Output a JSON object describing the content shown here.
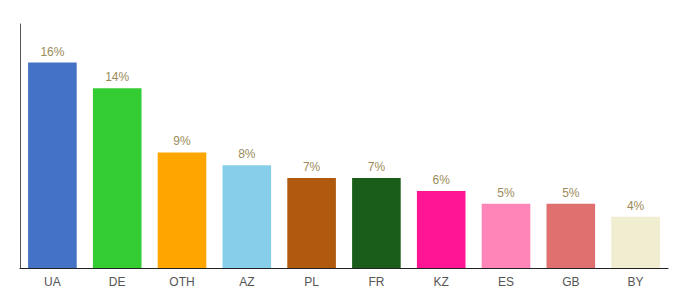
{
  "chart_data": {
    "type": "bar",
    "categories": [
      "UA",
      "DE",
      "OTH",
      "AZ",
      "PL",
      "FR",
      "KZ",
      "ES",
      "GB",
      "BY"
    ],
    "values": [
      16,
      14,
      9,
      8,
      7,
      7,
      6,
      5,
      5,
      4
    ],
    "value_labels": [
      "16%",
      "14%",
      "9%",
      "8%",
      "7%",
      "7%",
      "6%",
      "5%",
      "5%",
      "4%"
    ],
    "colors": [
      "#4472C4",
      "#33CC33",
      "#FFA500",
      "#87CEEB",
      "#B05A10",
      "#1A5C1A",
      "#FF1493",
      "#FF85B8",
      "#E07070",
      "#F0EDD0"
    ],
    "ylim": [
      0,
      19
    ],
    "data_labels": true,
    "tick_labels": "x",
    "grid": false
  }
}
